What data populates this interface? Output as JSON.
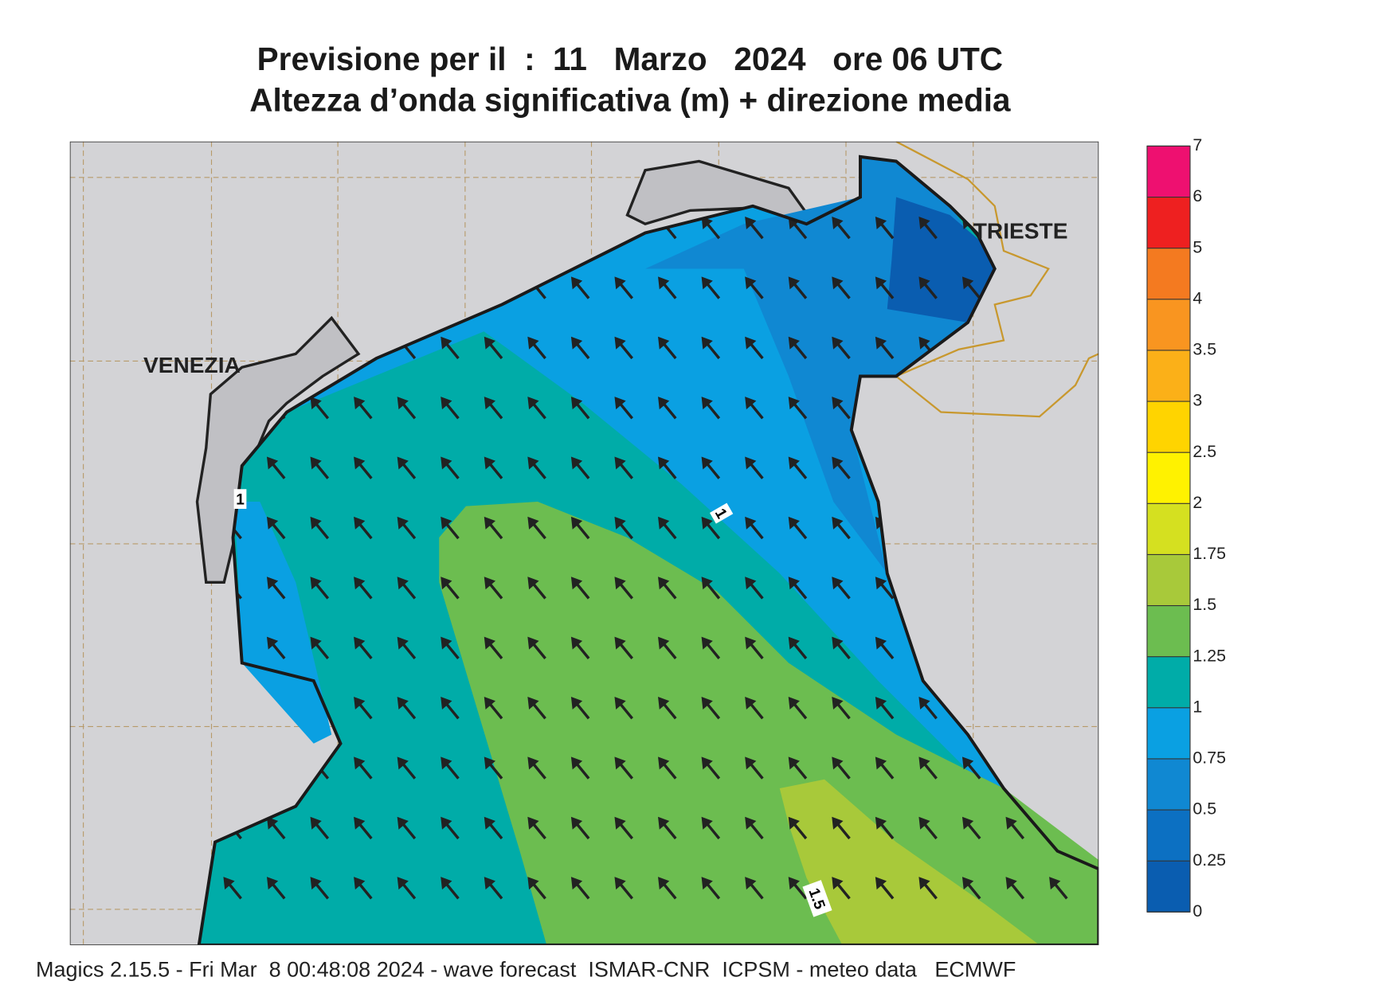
{
  "header": {
    "title": "Previsione per il  :  11   Marzo   2024   ore 06 UTC",
    "subtitle": "Altezza d’onda significativa (m) + direzione media"
  },
  "map": {
    "places": [
      "VENEZIA",
      "TRIESTE"
    ],
    "contour_labels": [
      "1",
      "1",
      "1.5"
    ]
  },
  "legend": {
    "levels": [
      0,
      0.25,
      0.5,
      0.75,
      1,
      1.25,
      1.5,
      1.75,
      2,
      2.5,
      3,
      3.5,
      4,
      5,
      6,
      7
    ],
    "colors": [
      "#0a5db0",
      "#0c70c2",
      "#1088d2",
      "#0aa0e2",
      "#00aca8",
      "#6cbd50",
      "#a8c93a",
      "#d5e020",
      "#fff200",
      "#ffd400",
      "#fbb018",
      "#f99520",
      "#f47a20",
      "#ee2020",
      "#ee1070"
    ]
  },
  "footer": {
    "text": "Magics 2.15.5 - Fri Mar  8 00:48:08 2024 - wave forecast  ISMAR-CNR  ICPSM - meteo data   ECMWF"
  }
}
